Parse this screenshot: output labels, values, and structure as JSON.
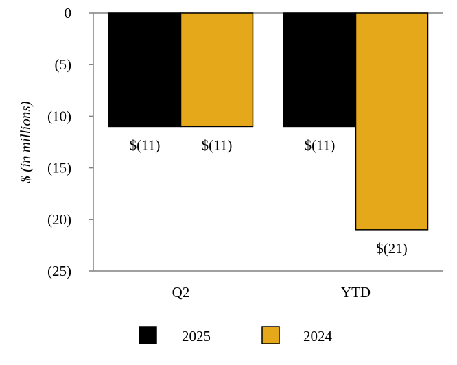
{
  "chart_data": {
    "type": "bar",
    "title": "",
    "xlabel": "",
    "ylabel": "$ (in millions)",
    "ylim": [
      -25,
      0
    ],
    "yticks": [
      0,
      -5,
      -10,
      -15,
      -20,
      -25
    ],
    "ytick_labels": [
      "0",
      "(5)",
      "(10)",
      "(15)",
      "(20)",
      "(25)"
    ],
    "categories": [
      "Q2",
      "YTD"
    ],
    "series": [
      {
        "name": "2025",
        "color": "#000000",
        "values": [
          -11,
          -11
        ],
        "labels": [
          "$(11)",
          "$(11)"
        ]
      },
      {
        "name": "2024",
        "color": "#E5A81B",
        "values": [
          -11,
          -21
        ],
        "labels": [
          "$(11)",
          "$(21)"
        ]
      }
    ],
    "legend_position": "bottom",
    "grid": false
  }
}
